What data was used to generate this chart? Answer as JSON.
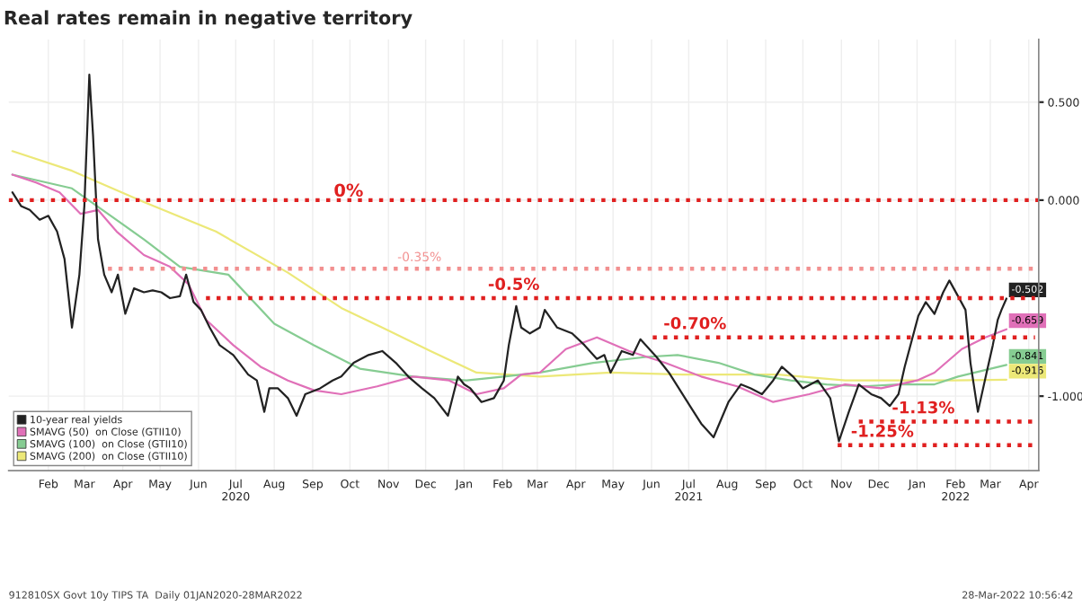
{
  "chart_data": {
    "type": "line",
    "title": "Real rates remain in negative territory",
    "series": [
      {
        "name": "SMAVG (200)  on Close (GTII10)",
        "color": "#ece878",
        "x": [
          "2020-01-17",
          "2020-03-05",
          "2020-05-02",
          "2020-06-29",
          "2020-08-26",
          "2020-10-08",
          "2020-11-10",
          "2020-12-19",
          "2021-01-25",
          "2021-03-17",
          "2021-05-13",
          "2021-07-10",
          "2021-09-25",
          "2021-11-18",
          "2021-12-31",
          "2022-02-13",
          "2022-03-28"
        ],
        "values": [
          0.25,
          0.15,
          -0.01,
          -0.16,
          -0.37,
          -0.55,
          -0.65,
          -0.77,
          -0.88,
          -0.9,
          -0.88,
          -0.89,
          -0.89,
          -0.92,
          -0.92,
          -0.92,
          -0.916
        ],
        "value_labels": [
          null,
          null,
          null,
          null,
          null,
          null,
          null,
          null,
          null,
          null,
          null,
          null,
          null,
          null,
          null,
          null,
          "-0.916"
        ]
      },
      {
        "name": "SMAVG (100)  on Close (GTII10)",
        "color": "#86cc92",
        "x": [
          "2020-01-17",
          "2020-03-05",
          "2020-04-03",
          "2020-05-02",
          "2020-05-31",
          "2020-07-09",
          "2020-08-15",
          "2020-09-16",
          "2020-10-23",
          "2020-12-05",
          "2021-01-17",
          "2021-02-16",
          "2021-03-17",
          "2021-04-29",
          "2021-06-11",
          "2021-07-06",
          "2021-08-08",
          "2021-09-06",
          "2021-10-05",
          "2021-11-03",
          "2021-12-02",
          "2021-12-31",
          "2022-01-29",
          "2022-02-17",
          "2022-03-28"
        ],
        "values": [
          0.13,
          0.06,
          -0.07,
          -0.2,
          -0.34,
          -0.38,
          -0.63,
          -0.74,
          -0.86,
          -0.9,
          -0.92,
          -0.9,
          -0.88,
          -0.83,
          -0.8,
          -0.79,
          -0.83,
          -0.89,
          -0.92,
          -0.94,
          -0.95,
          -0.94,
          -0.94,
          -0.9,
          -0.841
        ],
        "value_labels": [
          null,
          null,
          null,
          null,
          null,
          null,
          null,
          null,
          null,
          null,
          null,
          null,
          null,
          null,
          null,
          null,
          null,
          null,
          null,
          null,
          null,
          null,
          null,
          null,
          "-0.841"
        ]
      },
      {
        "name": "SMAVG (50)  on Close (GTII10)",
        "color": "#e070b8",
        "x": [
          "2020-01-17",
          "2020-02-05",
          "2020-02-24",
          "2020-03-12",
          "2020-03-26",
          "2020-04-10",
          "2020-05-02",
          "2020-05-23",
          "2020-06-07",
          "2020-06-21",
          "2020-07-13",
          "2020-08-04",
          "2020-08-26",
          "2020-09-16",
          "2020-10-08",
          "2020-11-06",
          "2020-12-05",
          "2021-01-03",
          "2021-01-25",
          "2021-02-16",
          "2021-03-02",
          "2021-03-17",
          "2021-04-07",
          "2021-05-02",
          "2021-05-28",
          "2021-06-26",
          "2021-07-25",
          "2021-08-23",
          "2021-09-21",
          "2021-10-20",
          "2021-11-18",
          "2021-12-17",
          "2022-01-15",
          "2022-01-29",
          "2022-02-20",
          "2022-03-11",
          "2022-03-28"
        ],
        "values": [
          0.13,
          0.09,
          0.04,
          -0.07,
          -0.05,
          -0.16,
          -0.28,
          -0.34,
          -0.43,
          -0.61,
          -0.74,
          -0.85,
          -0.92,
          -0.97,
          -0.99,
          -0.95,
          -0.9,
          -0.92,
          -0.99,
          -0.96,
          -0.89,
          -0.88,
          -0.76,
          -0.7,
          -0.77,
          -0.83,
          -0.9,
          -0.95,
          -1.03,
          -0.99,
          -0.94,
          -0.96,
          -0.92,
          -0.88,
          -0.76,
          -0.7,
          -0.659
        ],
        "value_labels": [
          null,
          null,
          null,
          null,
          null,
          null,
          null,
          null,
          null,
          null,
          null,
          null,
          null,
          null,
          null,
          null,
          null,
          null,
          null,
          null,
          null,
          null,
          null,
          null,
          null,
          null,
          null,
          null,
          null,
          null,
          null,
          null,
          null,
          null,
          null,
          null,
          "-0.659"
        ]
      },
      {
        "name": "10-year real yields",
        "color": "#222222",
        "x": [
          "2020-01-17",
          "2020-01-24",
          "2020-01-31",
          "2020-02-08",
          "2020-02-15",
          "2020-02-22",
          "2020-02-28",
          "2020-03-05",
          "2020-03-11",
          "2020-03-15",
          "2020-03-19",
          "2020-03-22",
          "2020-03-26",
          "2020-03-31",
          "2020-04-06",
          "2020-04-11",
          "2020-04-17",
          "2020-04-24",
          "2020-05-02",
          "2020-05-09",
          "2020-05-16",
          "2020-05-23",
          "2020-05-31",
          "2020-06-05",
          "2020-06-11",
          "2020-06-17",
          "2020-06-24",
          "2020-07-02",
          "2020-07-13",
          "2020-07-25",
          "2020-08-01",
          "2020-08-07",
          "2020-08-11",
          "2020-08-18",
          "2020-08-26",
          "2020-09-02",
          "2020-09-09",
          "2020-09-21",
          "2020-10-01",
          "2020-10-08",
          "2020-10-18",
          "2020-10-30",
          "2020-11-10",
          "2020-11-21",
          "2020-12-01",
          "2020-12-12",
          "2020-12-22",
          "2021-01-02",
          "2021-01-10",
          "2021-01-15",
          "2021-01-20",
          "2021-01-29",
          "2021-02-08",
          "2021-02-16",
          "2021-02-20",
          "2021-02-26",
          "2021-03-02",
          "2021-03-09",
          "2021-03-17",
          "2021-03-21",
          "2021-03-31",
          "2021-04-12",
          "2021-04-22",
          "2021-05-02",
          "2021-05-08",
          "2021-05-13",
          "2021-05-22",
          "2021-05-31",
          "2021-06-06",
          "2021-06-19",
          "2021-06-29",
          "2021-07-07",
          "2021-07-16",
          "2021-07-25",
          "2021-08-04",
          "2021-08-16",
          "2021-08-26",
          "2021-09-03",
          "2021-09-12",
          "2021-09-21",
          "2021-09-28",
          "2021-10-07",
          "2021-10-15",
          "2021-10-27",
          "2021-11-06",
          "2021-11-13",
          "2021-11-21",
          "2021-11-29",
          "2021-12-09",
          "2021-12-17",
          "2021-12-24",
          "2021-12-31",
          "2022-01-05",
          "2022-01-16",
          "2022-01-22",
          "2022-01-29",
          "2022-02-05",
          "2022-02-10",
          "2022-02-17",
          "2022-02-23",
          "2022-02-27",
          "2022-03-05",
          "2022-03-12",
          "2022-03-17",
          "2022-03-21",
          "2022-03-24",
          "2022-03-28"
        ],
        "values": [
          0.04,
          -0.03,
          -0.05,
          -0.1,
          -0.08,
          -0.16,
          -0.3,
          -0.65,
          -0.38,
          -0.03,
          0.64,
          0.33,
          -0.2,
          -0.38,
          -0.47,
          -0.38,
          -0.58,
          -0.45,
          -0.47,
          -0.46,
          -0.47,
          -0.5,
          -0.49,
          -0.38,
          -0.52,
          -0.56,
          -0.65,
          -0.74,
          -0.79,
          -0.89,
          -0.92,
          -1.08,
          -0.96,
          -0.96,
          -1.01,
          -1.1,
          -0.99,
          -0.96,
          -0.92,
          -0.9,
          -0.83,
          -0.79,
          -0.77,
          -0.83,
          -0.9,
          -0.96,
          -1.01,
          -1.1,
          -0.9,
          -0.94,
          -0.96,
          -1.03,
          -1.01,
          -0.92,
          -0.74,
          -0.54,
          -0.65,
          -0.68,
          -0.65,
          -0.56,
          -0.65,
          -0.68,
          -0.74,
          -0.81,
          -0.79,
          -0.88,
          -0.77,
          -0.79,
          -0.71,
          -0.8,
          -0.88,
          -0.96,
          -1.05,
          -1.14,
          -1.21,
          -1.03,
          -0.94,
          -0.96,
          -0.99,
          -0.92,
          -0.85,
          -0.9,
          -0.96,
          -0.92,
          -1.01,
          -1.23,
          -1.08,
          -0.94,
          -0.99,
          -1.01,
          -1.05,
          -0.99,
          -0.85,
          -0.59,
          -0.52,
          -0.58,
          -0.47,
          -0.41,
          -0.49,
          -0.56,
          -0.83,
          -1.08,
          -0.88,
          -0.74,
          -0.61,
          -0.56,
          -0.502
        ],
        "value_labels": [
          null,
          null,
          null,
          null,
          null,
          null,
          null,
          null,
          null,
          null,
          null,
          null,
          null,
          null,
          null,
          null,
          null,
          null,
          null,
          null,
          null,
          null,
          null,
          null,
          null,
          null,
          null,
          null,
          null,
          null,
          null,
          null,
          null,
          null,
          null,
          null,
          null,
          null,
          null,
          null,
          null,
          null,
          null,
          null,
          null,
          null,
          null,
          null,
          null,
          null,
          null,
          null,
          null,
          null,
          null,
          null,
          null,
          null,
          null,
          null,
          null,
          null,
          null,
          null,
          null,
          null,
          null,
          null,
          null,
          null,
          null,
          null,
          null,
          null,
          null,
          null,
          null,
          null,
          null,
          null,
          null,
          null,
          null,
          null,
          null,
          null,
          null,
          null,
          null,
          null,
          null,
          null,
          null,
          null,
          null,
          null,
          null,
          null,
          null,
          null,
          null,
          null,
          null,
          null,
          null,
          null,
          "-0.502"
        ]
      },
      {
        "color": "#f29090",
        "line_style": "dotted",
        "x": [
          "2020-04-03",
          "2022-04-20"
        ],
        "values": [
          -0.35,
          -0.35
        ]
      },
      {
        "color": "#e02020",
        "line_style": "dotted",
        "x": [
          "2020-06-21",
          "2022-04-20"
        ],
        "values": [
          -0.5,
          -0.5
        ]
      },
      {
        "color": "#e02020",
        "line_style": "dotted",
        "x": [
          "2021-06-16",
          "2022-04-20"
        ],
        "values": [
          -0.7,
          -0.7
        ]
      },
      {
        "color": "#e02020",
        "line_style": "dotted",
        "x": [
          "2021-11-29",
          "2022-04-20"
        ],
        "values": [
          -1.13,
          -1.13
        ]
      },
      {
        "color": "#e02020",
        "line_style": "dotted",
        "x": [
          "2021-11-12",
          "2022-04-20"
        ],
        "values": [
          -1.25,
          -1.25
        ]
      }
    ],
    "ref_lines": [
      {
        "axis": "y",
        "value": 0,
        "label": "0%",
        "color": "#e02020",
        "line_style": "dotted"
      }
    ],
    "annotations": [
      {
        "text": "-0.35%",
        "x": "2020-12-10",
        "y": -0.35
      },
      {
        "text": "-0.5%",
        "x": "2021-02-24",
        "y": -0.5
      },
      {
        "text": "-0.70%",
        "x": "2021-07-20",
        "y": -0.7
      },
      {
        "text": "-1.13%",
        "x": "2022-01-20",
        "y": -1.13
      },
      {
        "text": "-1.25%",
        "x": "2021-12-18",
        "y": -1.25
      },
      "912810SX Govt 10y TIPS TA  Daily 01JAN2020-28MAR2022",
      "28-Mar-2022 10:56:42"
    ],
    "xlim": [
      "2020-01-14",
      "2022-04-23"
    ],
    "xticks": [
      {
        "value": "2020-02-15",
        "label": "Feb"
      },
      {
        "value": "2020-03-15",
        "label": "Mar"
      },
      {
        "value": "2020-04-15",
        "label": "Apr"
      },
      {
        "value": "2020-05-15",
        "label": "May"
      },
      {
        "value": "2020-06-15",
        "label": "Jun"
      },
      {
        "value": "2020-07-15",
        "label": "Jul\n2020"
      },
      {
        "value": "2020-08-15",
        "label": "Aug"
      },
      {
        "value": "2020-09-15",
        "label": "Sep"
      },
      {
        "value": "2020-10-15",
        "label": "Oct"
      },
      {
        "value": "2020-11-15",
        "label": "Nov"
      },
      {
        "value": "2020-12-15",
        "label": "Dec"
      },
      {
        "value": "2021-01-15",
        "label": "Jan"
      },
      {
        "value": "2021-02-15",
        "label": "Feb"
      },
      {
        "value": "2021-03-15",
        "label": "Mar"
      },
      {
        "value": "2021-04-15",
        "label": "Apr"
      },
      {
        "value": "2021-05-15",
        "label": "May"
      },
      {
        "value": "2021-06-15",
        "label": "Jun"
      },
      {
        "value": "2021-07-15",
        "label": "Jul\n2021"
      },
      {
        "value": "2021-08-15",
        "label": "Aug"
      },
      {
        "value": "2021-09-15",
        "label": "Sep"
      },
      {
        "value": "2021-10-15",
        "label": "Oct"
      },
      {
        "value": "2021-11-15",
        "label": "Nov"
      },
      {
        "value": "2021-12-15",
        "label": "Dec"
      },
      {
        "value": "2022-01-15",
        "label": "Jan"
      },
      {
        "value": "2022-02-15",
        "label": "Feb\n2022"
      },
      {
        "value": "2022-03-15",
        "label": "Mar"
      },
      {
        "value": "2022-04-15",
        "label": "Apr"
      }
    ],
    "ylim": [
      -1.38,
      0.82
    ],
    "yticks": [
      {
        "value": 0.5,
        "label": "0.500"
      },
      {
        "value": 0,
        "label": "0.000"
      },
      {
        "value": -1,
        "label": "-1.000"
      }
    ],
    "legend": "bottom left",
    "grid": true
  }
}
